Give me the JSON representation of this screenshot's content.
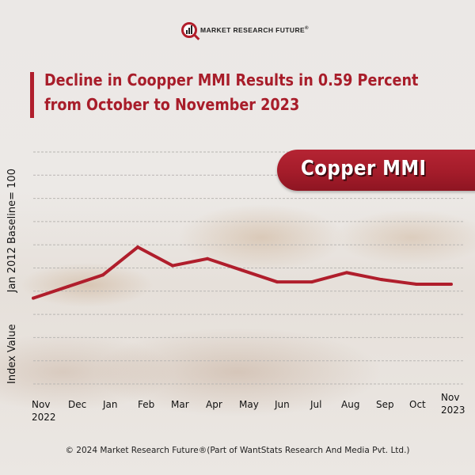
{
  "brand": {
    "logo_text": "MARKET RESEARCH FUTURE",
    "logo_reg": "®"
  },
  "title": {
    "line1": "Decline in Coopper MMI Results in 0.59 Percent",
    "line2": "from October to November 2023"
  },
  "badge": {
    "label": "Copper MMI"
  },
  "footer": "© 2024 Market Research Future®(Part of WantStats Research And Media Pvt. Ltd.)",
  "colors": {
    "accent": "#a81d2a",
    "line": "#b01e2c",
    "grid": "#b9b6b3"
  },
  "chart_data": {
    "type": "line",
    "title": "Copper MMI",
    "xlabel": "",
    "ylabel_parts": [
      "Index Value",
      "Jan 2012 Baseline= 100"
    ],
    "categories": [
      "Nov 2022",
      "Dec",
      "Jan",
      "Feb",
      "Mar",
      "Apr",
      "May",
      "Jun",
      "Jul",
      "Aug",
      "Sep",
      "Oct",
      "Nov 2023"
    ],
    "tick_labels": [
      {
        "line1": "Nov",
        "line2": "2022"
      },
      {
        "line1": "Dec",
        "line2": ""
      },
      {
        "line1": "Jan",
        "line2": ""
      },
      {
        "line1": "Feb",
        "line2": ""
      },
      {
        "line1": "Mar",
        "line2": ""
      },
      {
        "line1": "Apr",
        "line2": ""
      },
      {
        "line1": "May",
        "line2": ""
      },
      {
        "line1": "Jun",
        "line2": ""
      },
      {
        "line1": "Jul",
        "line2": ""
      },
      {
        "line1": "Aug",
        "line2": ""
      },
      {
        "line1": "Sep",
        "line2": ""
      },
      {
        "line1": "Oct",
        "line2": ""
      },
      {
        "line1": "Nov",
        "line2": "2023"
      }
    ],
    "series": [
      {
        "name": "Copper MMI",
        "values": [
          3.7,
          4.2,
          4.7,
          5.9,
          5.1,
          5.4,
          4.9,
          4.4,
          4.4,
          4.8,
          4.5,
          4.3,
          4.3
        ]
      }
    ],
    "value_note": "relative index levels estimated from gridlines (no numeric y ticks shown)",
    "ylim": [
      0,
      10
    ],
    "grid": true,
    "gridline_count": 11
  }
}
